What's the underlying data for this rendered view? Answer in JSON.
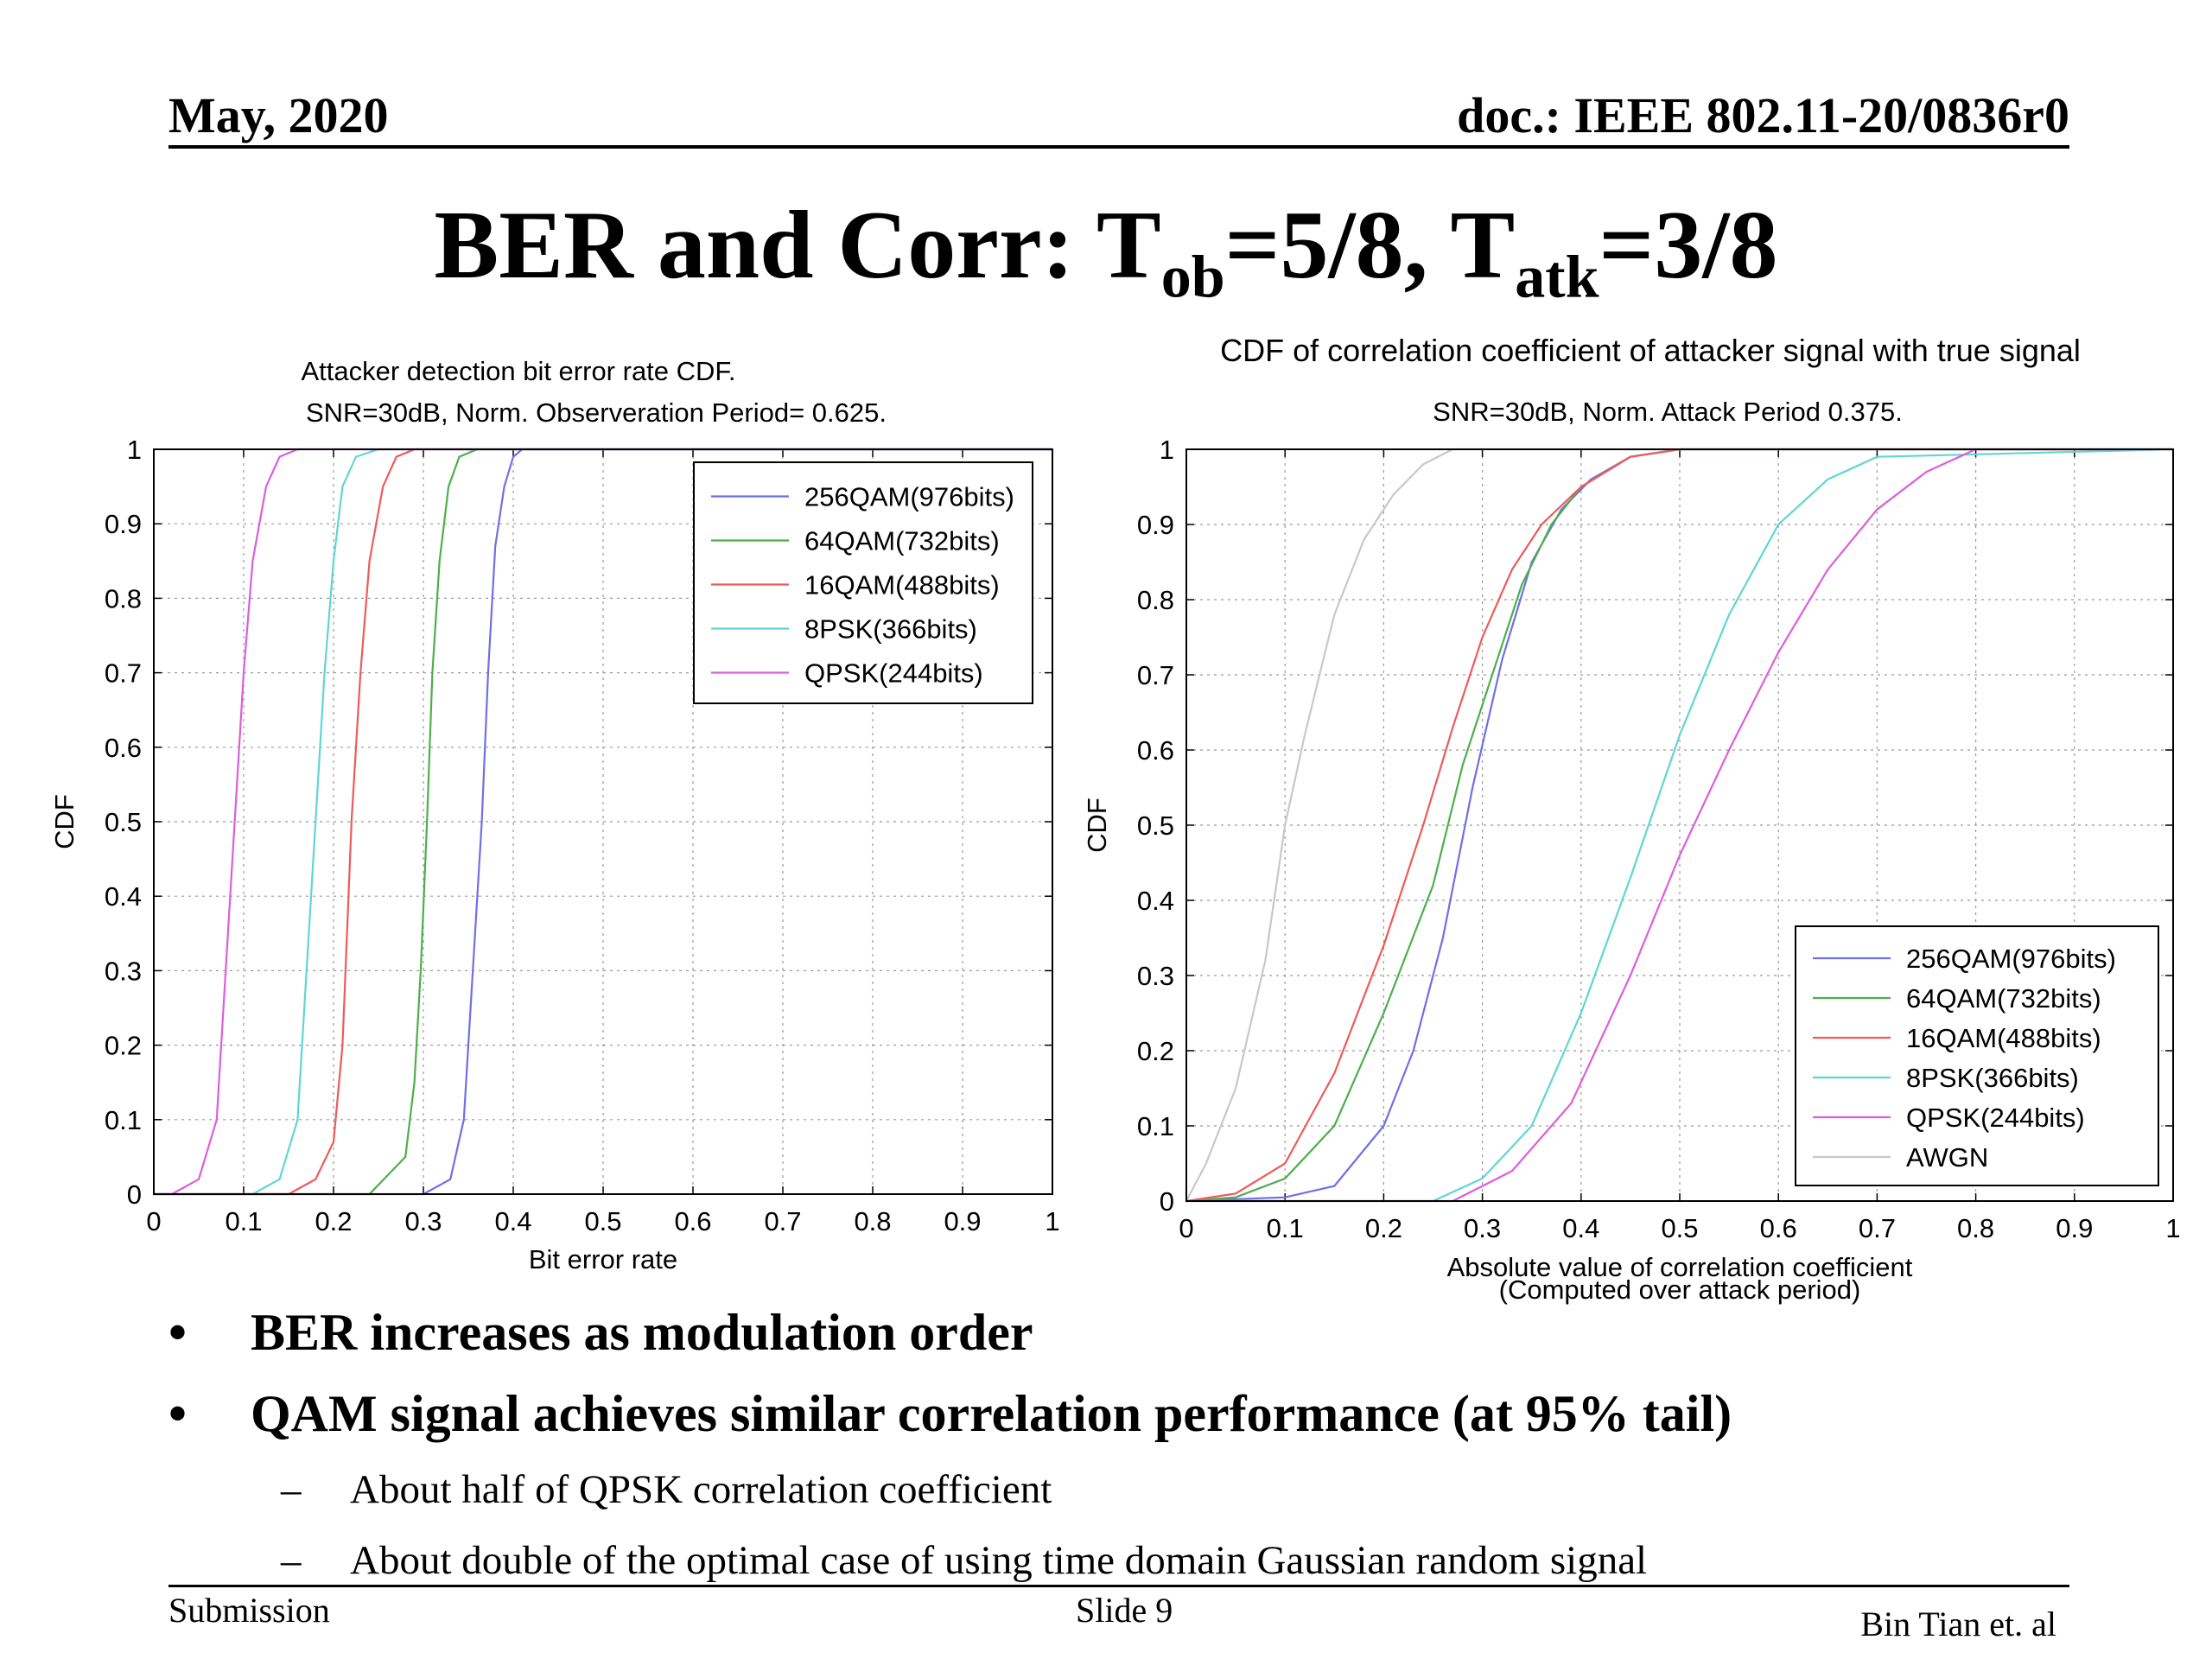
{
  "header": {
    "date": "May, 2020",
    "doc": "doc.: IEEE 802.11-20/0836r0"
  },
  "title": {
    "main": "BER and Corr: T",
    "sub1": "ob",
    "mid": "=5/8, T",
    "sub2": "atk",
    "end": "=3/8"
  },
  "chart_data": [
    {
      "type": "line",
      "title": "Attacker detection bit error rate CDF.",
      "subtitle": "SNR=30dB, Norm. Observeration Period= 0.625.",
      "xlabel": "Bit error rate",
      "ylabel": "CDF",
      "xlim": [
        0,
        1
      ],
      "ylim": [
        0,
        1
      ],
      "xticks": [
        "0",
        "0.1",
        "0.2",
        "0.3",
        "0.4",
        "0.5",
        "0.6",
        "0.7",
        "0.8",
        "0.9",
        "1"
      ],
      "yticks": [
        "0",
        "0.1",
        "0.2",
        "0.3",
        "0.4",
        "0.5",
        "0.6",
        "0.7",
        "0.8",
        "0.9",
        "1"
      ],
      "grid": true,
      "legend_position": "top-right",
      "series": [
        {
          "name": "256QAM(976bits)",
          "color": "#6f6fe8",
          "x": [
            0.0,
            0.3,
            0.33,
            0.345,
            0.355,
            0.365,
            0.372,
            0.38,
            0.39,
            0.4,
            0.41,
            1.0
          ],
          "y": [
            0,
            0,
            0.02,
            0.1,
            0.3,
            0.5,
            0.7,
            0.87,
            0.95,
            0.99,
            1,
            1
          ]
        },
        {
          "name": "64QAM(732bits)",
          "color": "#4caf4c",
          "x": [
            0.0,
            0.24,
            0.28,
            0.29,
            0.297,
            0.304,
            0.31,
            0.318,
            0.328,
            0.34,
            0.36,
            1.0
          ],
          "y": [
            0,
            0,
            0.05,
            0.15,
            0.3,
            0.5,
            0.7,
            0.85,
            0.95,
            0.99,
            1,
            1
          ]
        },
        {
          "name": "16QAM(488bits)",
          "color": "#ee5a5a",
          "x": [
            0.0,
            0.15,
            0.18,
            0.2,
            0.21,
            0.22,
            0.23,
            0.24,
            0.255,
            0.27,
            0.29,
            1.0
          ],
          "y": [
            0,
            0,
            0.02,
            0.07,
            0.2,
            0.5,
            0.7,
            0.85,
            0.95,
            0.99,
            1,
            1
          ]
        },
        {
          "name": "8PSK(366bits)",
          "color": "#5fd5d5",
          "x": [
            0.0,
            0.11,
            0.14,
            0.16,
            0.17,
            0.18,
            0.19,
            0.2,
            0.21,
            0.225,
            0.25,
            1.0
          ],
          "y": [
            0,
            0,
            0.02,
            0.1,
            0.3,
            0.5,
            0.7,
            0.85,
            0.95,
            0.99,
            1,
            1
          ]
        },
        {
          "name": "QPSK(244bits)",
          "color": "#dd5ddd",
          "x": [
            0.0,
            0.02,
            0.05,
            0.07,
            0.08,
            0.09,
            0.1,
            0.11,
            0.125,
            0.14,
            0.16,
            1.0
          ],
          "y": [
            0,
            0,
            0.02,
            0.1,
            0.3,
            0.5,
            0.7,
            0.85,
            0.95,
            0.99,
            1,
            1
          ]
        }
      ]
    },
    {
      "type": "line",
      "title": "CDF of correlation coefficient of attacker signal with true signal",
      "subtitle": "SNR=30dB, Norm. Attack Period 0.375.",
      "xlabel": "Absolute value of correlation coefficient",
      "xlabel2": "(Computed over attack period)",
      "ylabel": "CDF",
      "xlim": [
        0,
        1
      ],
      "ylim": [
        0,
        1
      ],
      "xticks": [
        "0",
        "0.1",
        "0.2",
        "0.3",
        "0.4",
        "0.5",
        "0.6",
        "0.7",
        "0.8",
        "0.9",
        "1"
      ],
      "yticks": [
        "0",
        "0.1",
        "0.2",
        "0.3",
        "0.4",
        "0.5",
        "0.6",
        "0.7",
        "0.8",
        "0.9",
        "1"
      ],
      "grid": true,
      "legend_position": "bottom-right",
      "series": [
        {
          "name": "256QAM(976bits)",
          "color": "#6f6fe8",
          "x": [
            0.0,
            0.1,
            0.15,
            0.2,
            0.23,
            0.26,
            0.29,
            0.32,
            0.35,
            0.38,
            0.41,
            0.45,
            0.5,
            1.0
          ],
          "y": [
            0,
            0.005,
            0.02,
            0.1,
            0.2,
            0.35,
            0.55,
            0.72,
            0.85,
            0.92,
            0.96,
            0.99,
            1,
            1
          ]
        },
        {
          "name": "64QAM(732bits)",
          "color": "#4caf4c",
          "x": [
            0.0,
            0.05,
            0.1,
            0.15,
            0.2,
            0.25,
            0.28,
            0.31,
            0.34,
            0.37,
            0.4,
            0.45,
            0.5,
            1.0
          ],
          "y": [
            0,
            0.005,
            0.03,
            0.1,
            0.25,
            0.42,
            0.58,
            0.7,
            0.82,
            0.9,
            0.95,
            0.99,
            1,
            1
          ]
        },
        {
          "name": "16QAM(488bits)",
          "color": "#ee5a5a",
          "x": [
            0.0,
            0.05,
            0.1,
            0.15,
            0.2,
            0.24,
            0.27,
            0.3,
            0.33,
            0.36,
            0.4,
            0.45,
            0.5,
            1.0
          ],
          "y": [
            0,
            0.01,
            0.05,
            0.17,
            0.34,
            0.5,
            0.63,
            0.75,
            0.84,
            0.9,
            0.95,
            0.99,
            1,
            1
          ]
        },
        {
          "name": "8PSK(366bits)",
          "color": "#5fd5d5",
          "x": [
            0.0,
            0.25,
            0.3,
            0.35,
            0.4,
            0.45,
            0.5,
            0.55,
            0.6,
            0.65,
            0.7,
            1.0
          ],
          "y": [
            0,
            0,
            0.03,
            0.1,
            0.25,
            0.43,
            0.62,
            0.78,
            0.9,
            0.96,
            0.99,
            1
          ]
        },
        {
          "name": "QPSK(244bits)",
          "color": "#dd5ddd",
          "x": [
            0.0,
            0.27,
            0.33,
            0.39,
            0.45,
            0.5,
            0.55,
            0.6,
            0.65,
            0.7,
            0.75,
            0.8,
            1.0
          ],
          "y": [
            0,
            0,
            0.04,
            0.13,
            0.3,
            0.46,
            0.6,
            0.73,
            0.84,
            0.92,
            0.97,
            1,
            1
          ]
        },
        {
          "name": "AWGN",
          "color": "#c8c8c8",
          "x": [
            0.0,
            0.02,
            0.05,
            0.08,
            0.1,
            0.12,
            0.15,
            0.18,
            0.21,
            0.24,
            0.27,
            0.3,
            1.0
          ],
          "y": [
            0,
            0.05,
            0.15,
            0.32,
            0.5,
            0.62,
            0.78,
            0.88,
            0.94,
            0.98,
            1,
            1,
            1
          ]
        }
      ]
    }
  ],
  "bullets": [
    {
      "marker": "•",
      "text": "BER increases as modulation order"
    },
    {
      "marker": "•",
      "text": "QAM signal achieves similar correlation performance (at 95% tail)"
    }
  ],
  "subbullets": [
    {
      "marker": "–",
      "text": "About half of QPSK correlation coefficient"
    },
    {
      "marker": "–",
      "text": "About double of the optimal case of using time domain Gaussian random signal"
    }
  ],
  "footer": {
    "left": "Submission",
    "center": "Slide 9",
    "right": "Bin Tian et. al"
  }
}
